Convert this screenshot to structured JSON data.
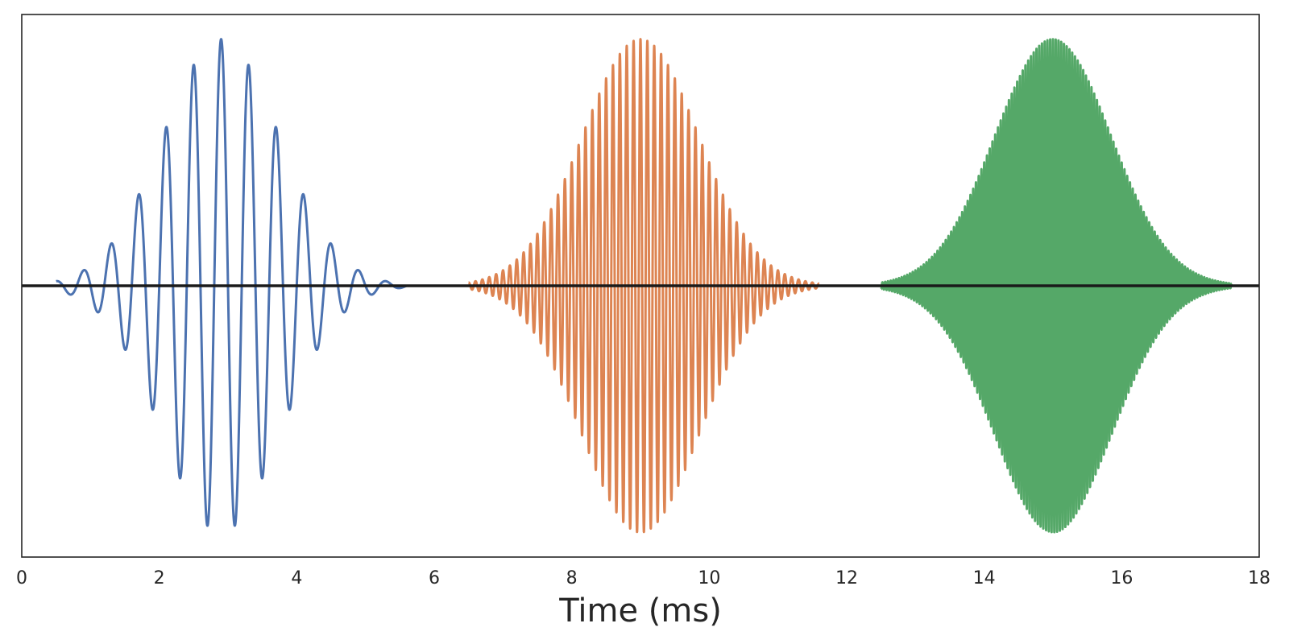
{
  "chart_data": {
    "type": "line",
    "xlabel": "Time (ms)",
    "ylabel": "",
    "title": "",
    "xlim": [
      0,
      18
    ],
    "ylim": [
      -1.1,
      1.1
    ],
    "grid": false,
    "y_ticks_shown": false,
    "x_ticks": [
      0,
      2,
      4,
      6,
      8,
      10,
      12,
      14,
      16,
      18
    ],
    "x_tick_labels": [
      "0",
      "2",
      "4",
      "6",
      "8",
      "10",
      "12",
      "14",
      "16",
      "18"
    ],
    "baseline": {
      "y": 0,
      "color": "#1a1a1a"
    },
    "series": [
      {
        "center_ms": 2.9,
        "sigma_ms": 0.85,
        "carrier_khz": 2.5,
        "amplitude": 1.0,
        "x_range": [
          0.5,
          5.6
        ],
        "color": "#4c72b0"
      },
      {
        "center_ms": 9.0,
        "sigma_ms": 0.85,
        "carrier_khz": 10.0,
        "amplitude": 1.0,
        "x_range": [
          6.5,
          11.6
        ],
        "color": "#dd8452"
      },
      {
        "center_ms": 15.0,
        "sigma_ms": 0.85,
        "carrier_khz": 25.0,
        "amplitude": 1.0,
        "x_range": [
          12.5,
          17.6
        ],
        "color": "#55a868"
      }
    ]
  }
}
